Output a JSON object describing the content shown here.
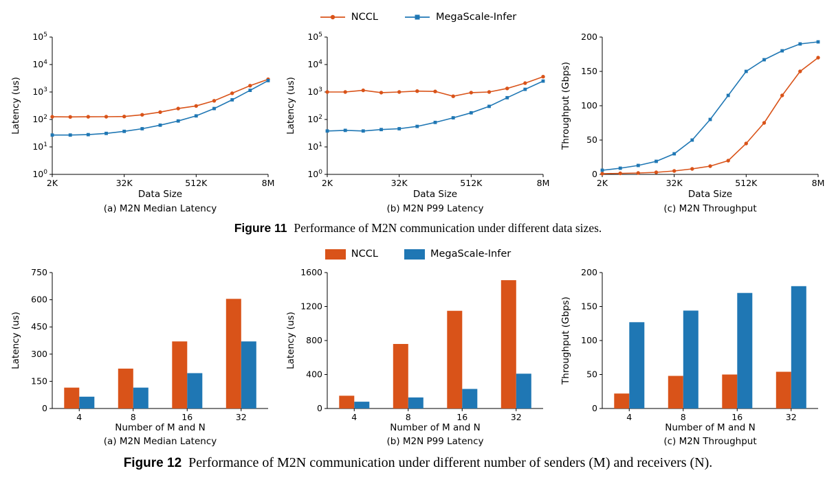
{
  "colors": {
    "nccl": "#d95319",
    "megascale": "#1f77b4"
  },
  "legend": {
    "nccl": "NCCL",
    "megascale": "MegaScale-Infer"
  },
  "figure11": {
    "label": "Figure 11",
    "caption": "Performance of M2N communication under different data sizes."
  },
  "figure12": {
    "label": "Figure 12",
    "caption": "Performance of M2N communication under different number of senders (M) and receivers (N)."
  },
  "chart_data": [
    {
      "type": "line",
      "title": "(a) M2N Median Latency",
      "xlabel": "Data Size",
      "ylabel": "Latency (us)",
      "yscale": "log10",
      "ylim_exp": [
        0,
        5
      ],
      "x": [
        "2K",
        "4K",
        "8K",
        "16K",
        "32K",
        "64K",
        "128K",
        "256K",
        "512K",
        "1M",
        "2M",
        "4M",
        "8M"
      ],
      "x_tick_indices": [
        0,
        4,
        8,
        12
      ],
      "x_tick_labels": [
        "2K",
        "32K",
        "512K",
        "8M"
      ],
      "series": [
        {
          "name": "NCCL",
          "marker": "circle",
          "color_key": "nccl",
          "values": [
            125,
            124,
            125,
            126,
            128,
            148,
            185,
            250,
            310,
            480,
            900,
            1700,
            2900
          ]
        },
        {
          "name": "MegaScale-Infer",
          "marker": "square",
          "color_key": "megascale",
          "values": [
            27,
            27,
            28,
            31,
            37,
            46,
            62,
            88,
            135,
            250,
            520,
            1150,
            2600
          ]
        }
      ]
    },
    {
      "type": "line",
      "title": "(b) M2N P99 Latency",
      "xlabel": "Data Size",
      "ylabel": "Latency (us)",
      "yscale": "log10",
      "ylim_exp": [
        0,
        5
      ],
      "x": [
        "2K",
        "4K",
        "8K",
        "16K",
        "32K",
        "64K",
        "128K",
        "256K",
        "512K",
        "1M",
        "2M",
        "4M",
        "8M"
      ],
      "x_tick_indices": [
        0,
        4,
        8,
        12
      ],
      "x_tick_labels": [
        "2K",
        "32K",
        "512K",
        "8M"
      ],
      "series": [
        {
          "name": "NCCL",
          "marker": "circle",
          "color_key": "nccl",
          "values": [
            1000,
            1000,
            1150,
            950,
            1000,
            1080,
            1050,
            700,
            950,
            1000,
            1350,
            2100,
            3600
          ]
        },
        {
          "name": "MegaScale-Infer",
          "marker": "square",
          "color_key": "megascale",
          "values": [
            38,
            40,
            38,
            43,
            46,
            56,
            78,
            115,
            175,
            300,
            620,
            1250,
            2500
          ]
        }
      ]
    },
    {
      "type": "line",
      "title": "(c) M2N Throughput",
      "xlabel": "Data Size",
      "ylabel": "Throughput (Gbps)",
      "yscale": "linear",
      "ylim": [
        0,
        200
      ],
      "yticks": [
        0,
        50,
        100,
        150,
        200
      ],
      "x": [
        "2K",
        "4K",
        "8K",
        "16K",
        "32K",
        "64K",
        "128K",
        "256K",
        "512K",
        "1M",
        "2M",
        "4M",
        "8M"
      ],
      "x_tick_indices": [
        0,
        4,
        8,
        12
      ],
      "x_tick_labels": [
        "2K",
        "32K",
        "512K",
        "8M"
      ],
      "series": [
        {
          "name": "NCCL",
          "marker": "circle",
          "color_key": "nccl",
          "values": [
            1,
            1.5,
            2,
            3,
            5,
            8,
            12,
            20,
            45,
            75,
            115,
            150,
            170
          ]
        },
        {
          "name": "MegaScale-Infer",
          "marker": "square",
          "color_key": "megascale",
          "values": [
            6,
            9,
            13,
            19,
            30,
            50,
            80,
            115,
            150,
            167,
            180,
            190,
            193
          ]
        }
      ]
    },
    {
      "type": "bar",
      "title": "(a) M2N Median Latency",
      "xlabel": "Number of M and N",
      "ylabel": "Latency (us)",
      "categories": [
        "4",
        "8",
        "16",
        "32"
      ],
      "ylim": [
        0,
        750
      ],
      "yticks": [
        0,
        150,
        300,
        450,
        600,
        750
      ],
      "series": [
        {
          "name": "NCCL",
          "color_key": "nccl",
          "values": [
            115,
            220,
            370,
            605
          ]
        },
        {
          "name": "MegaScale-Infer",
          "color_key": "megascale",
          "values": [
            65,
            115,
            195,
            370
          ]
        }
      ]
    },
    {
      "type": "bar",
      "title": "(b) M2N P99 Latency",
      "xlabel": "Number of M and N",
      "ylabel": "Latency (us)",
      "categories": [
        "4",
        "8",
        "16",
        "32"
      ],
      "ylim": [
        0,
        1600
      ],
      "yticks": [
        0,
        400,
        800,
        1200,
        1600
      ],
      "series": [
        {
          "name": "NCCL",
          "color_key": "nccl",
          "values": [
            150,
            760,
            1150,
            1510
          ]
        },
        {
          "name": "MegaScale-Infer",
          "color_key": "megascale",
          "values": [
            80,
            130,
            230,
            410
          ]
        }
      ]
    },
    {
      "type": "bar",
      "title": "(c) M2N Throughput",
      "xlabel": "Number of M and N",
      "ylabel": "Throughput (Gbps)",
      "categories": [
        "4",
        "8",
        "16",
        "32"
      ],
      "ylim": [
        0,
        200
      ],
      "yticks": [
        0,
        50,
        100,
        150,
        200
      ],
      "series": [
        {
          "name": "NCCL",
          "color_key": "nccl",
          "values": [
            22,
            48,
            50,
            54
          ]
        },
        {
          "name": "MegaScale-Infer",
          "color_key": "megascale",
          "values": [
            127,
            144,
            170,
            180
          ]
        }
      ]
    }
  ]
}
